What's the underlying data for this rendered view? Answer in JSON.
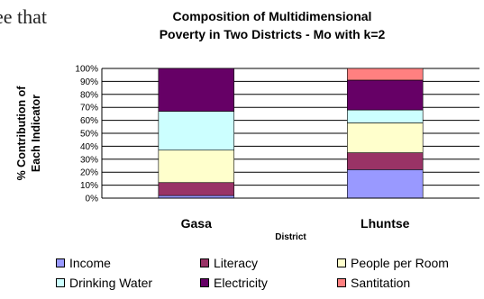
{
  "page_text": "ee that",
  "chart_data": {
    "type": "bar",
    "stacked": true,
    "title_lines": [
      "Composition of Multidimensional",
      "Poverty in Two Districts - Mo with k=2"
    ],
    "xlabel": "District",
    "ylabel_lines": [
      "% Contribution of",
      "Each Indicator"
    ],
    "categories": [
      "Gasa",
      "Lhuntse"
    ],
    "y_ticks": [
      "0%",
      "10%",
      "20%",
      "30%",
      "40%",
      "50%",
      "60%",
      "70%",
      "80%",
      "90%",
      "100%"
    ],
    "ylim": [
      0,
      100
    ],
    "grid": true,
    "legend_position": "bottom",
    "series": [
      {
        "name": "Income",
        "color": "#9999ff",
        "values": [
          2,
          22
        ]
      },
      {
        "name": "Literacy",
        "color": "#993366",
        "values": [
          10,
          13
        ]
      },
      {
        "name": "People per Room",
        "color": "#ffffcc",
        "values": [
          25,
          23
        ]
      },
      {
        "name": "Drinking Water",
        "color": "#ccffff",
        "values": [
          30,
          10
        ]
      },
      {
        "name": "Electricity",
        "color": "#660066",
        "values": [
          33,
          23
        ]
      },
      {
        "name": "Santitation",
        "color": "#ff8080",
        "values": [
          0,
          9
        ]
      }
    ]
  }
}
